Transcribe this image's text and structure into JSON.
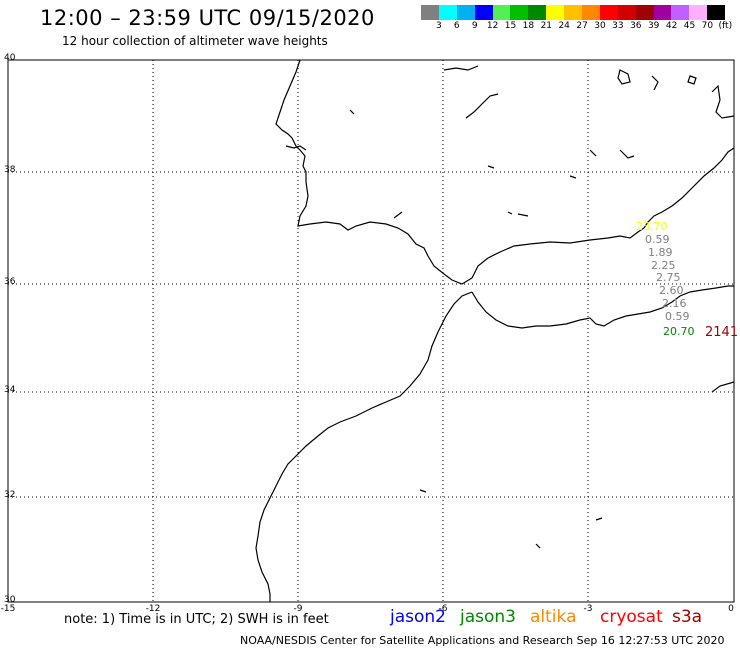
{
  "header": {
    "title": "12:00 – 23:59 UTC 09/15/2020",
    "subtitle": "12 hour collection of altimeter wave heights"
  },
  "color_scale": {
    "colors": [
      "#808080",
      "#00ffff",
      "#00b0f0",
      "#0000ff",
      "#55ee55",
      "#00c000",
      "#008800",
      "#ffff00",
      "#ffc000",
      "#ff8800",
      "#ff0000",
      "#d00000",
      "#a00000",
      "#a000a0",
      "#c060ff",
      "#ffb0ff",
      "#000000"
    ],
    "labels": [
      "3",
      "6",
      "9",
      "12",
      "15",
      "18",
      "21",
      "24",
      "27",
      "30",
      "33",
      "36",
      "39",
      "42",
      "45",
      "70",
      "(ft)"
    ]
  },
  "axes": {
    "lon_ticks": [
      "-15",
      "-12",
      "-9",
      "-6",
      "-3",
      "0"
    ],
    "lat_ticks": [
      "40",
      "38",
      "36",
      "34",
      "32",
      "30"
    ]
  },
  "observations": [
    {
      "text": "23.70",
      "color": "#ffff00"
    },
    {
      "text": "0.59",
      "color": "#808080"
    },
    {
      "text": "1.89",
      "color": "#808080"
    },
    {
      "text": "2.25",
      "color": "#808080"
    },
    {
      "text": "2.75",
      "color": "#808080"
    },
    {
      "text": "2.60",
      "color": "#808080"
    },
    {
      "text": "2.16",
      "color": "#808080"
    },
    {
      "text": "0.59",
      "color": "#808080"
    },
    {
      "text": "20.70",
      "color": "#008800"
    },
    {
      "text": "2141",
      "color": "#a00000"
    }
  ],
  "note": "note: 1) Time is in UTC; 2) SWH is in feet",
  "legend": [
    {
      "label": "jason2",
      "color": "#0000ff"
    },
    {
      "label": "jason3",
      "color": "#008800"
    },
    {
      "label": "altika",
      "color": "#ff8800"
    },
    {
      "label": "cryosat",
      "color": "#ff0000"
    },
    {
      "label": "s3a",
      "color": "#a00000"
    }
  ],
  "footer": "NOAA/NESDIS Center for Satellite Applications and Research    Sep 16 12:27:53 UTC 2020"
}
